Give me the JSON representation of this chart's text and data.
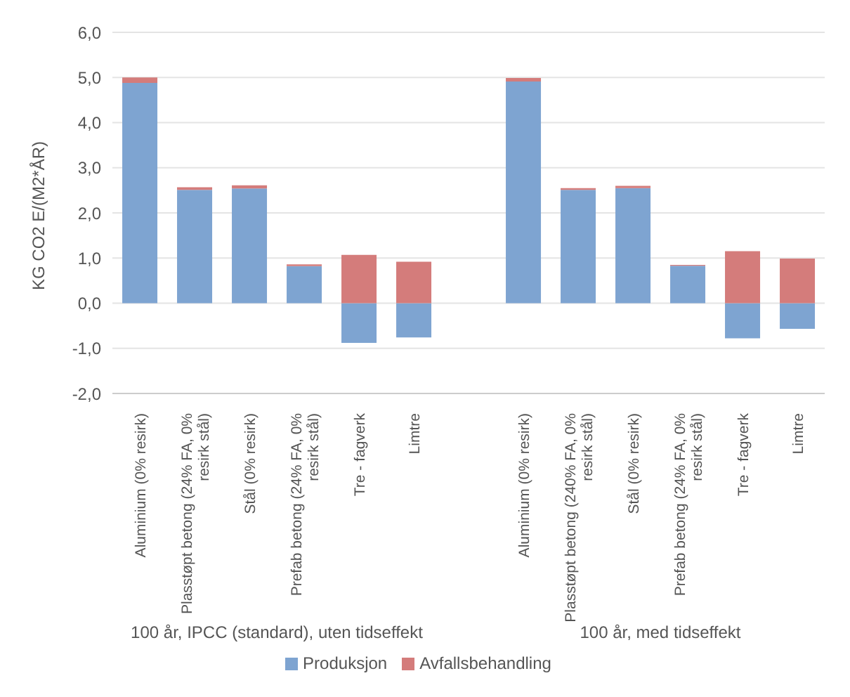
{
  "chart_data": {
    "type": "bar",
    "stacked": true,
    "ylabel": "KG CO2 E/(M2*ÅR)",
    "categories": [
      "Aluminium (0% resirk)",
      "Plasstøpt betong (24% FA, 0% resirk stål)",
      "Stål (0% resirk)",
      "Prefab betong (24% FA, 0% resirk stål)",
      "Tre - fagverk",
      "Limtre",
      null,
      "Aluminium (0% resirk)",
      "Plasstøpt betong (240% FA, 0% resirk stål)",
      "Stål (0% resirk)",
      "Prefab betong (24% FA, 0% resirk stål)",
      "Tre - fagverk",
      "Limtre"
    ],
    "series": [
      {
        "name": "Produksjon",
        "color": "#7ea4d1",
        "values": [
          4.88,
          2.51,
          2.54,
          0.82,
          -0.88,
          -0.76,
          null,
          4.91,
          2.51,
          2.55,
          0.83,
          -0.78,
          -0.57
        ]
      },
      {
        "name": "Avfallsbehandling",
        "color": "#d47c7b",
        "values": [
          0.12,
          0.06,
          0.07,
          0.04,
          1.07,
          0.92,
          null,
          0.08,
          0.04,
          0.05,
          0.02,
          1.15,
          0.99
        ]
      }
    ],
    "ylim": [
      -2,
      6
    ],
    "yticks": [
      {
        "value": -2,
        "label": "-2,0"
      },
      {
        "value": -1,
        "label": "-1,0"
      },
      {
        "value": 0,
        "label": "0,0"
      },
      {
        "value": 1,
        "label": "1,0"
      },
      {
        "value": 2,
        "label": "2,0"
      },
      {
        "value": 3,
        "label": "3,0"
      },
      {
        "value": 4,
        "label": "4,0"
      },
      {
        "value": 5,
        "label": "5,0"
      },
      {
        "value": 6,
        "label": "6,0"
      }
    ],
    "grid": "y",
    "legend": "bottom",
    "annotations": [
      "100 år, IPCC (standard), uten tidseffekt",
      "100 år, med tidseffekt"
    ]
  }
}
